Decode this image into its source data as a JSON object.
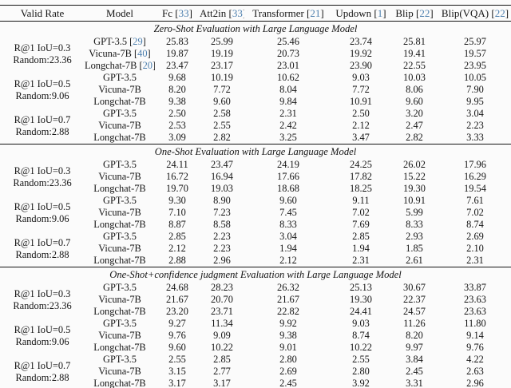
{
  "colors": {
    "citation": "#4d7fae",
    "rule": "#141414",
    "text": "#151515",
    "background": "#fbfbfb"
  },
  "columns": [
    {
      "label": "Valid Rate"
    },
    {
      "label": "Model"
    },
    {
      "label": "Fc",
      "cite": "33"
    },
    {
      "label": "Att2in",
      "cite": "33"
    },
    {
      "label": "Transformer",
      "cite": "21"
    },
    {
      "label": "Updown",
      "cite": "1"
    },
    {
      "label": "Blip",
      "cite": "22"
    },
    {
      "label": "Blip(VQA)",
      "cite": "22"
    }
  ],
  "sections": [
    {
      "title": "Zero-Shot Evaluation with Large Language Model",
      "groups": [
        {
          "valid_rate": [
            "R@1 IoU=0.3",
            "Random:23.36"
          ],
          "rows": [
            {
              "model": "GPT-3.5",
              "cite": "29",
              "values": [
                "25.83",
                "25.99",
                "25.46",
                "23.74",
                "25.81",
                "25.97"
              ]
            },
            {
              "model": "Vicuna-7B",
              "cite": "40",
              "values": [
                "19.87",
                "19.19",
                "20.73",
                "19.92",
                "19.41",
                "19.57"
              ]
            },
            {
              "model": "Longchat-7B",
              "cite": "20",
              "values": [
                "23.47",
                "23.17",
                "23.01",
                "23.90",
                "22.55",
                "23.95"
              ]
            }
          ]
        },
        {
          "valid_rate": [
            "R@1 IoU=0.5",
            "Random:9.06"
          ],
          "rows": [
            {
              "model": "GPT-3.5",
              "values": [
                "9.68",
                "10.19",
                "10.62",
                "9.03",
                "10.03",
                "10.05"
              ]
            },
            {
              "model": "Vicuna-7B",
              "values": [
                "8.20",
                "7.72",
                "8.04",
                "7.72",
                "8.06",
                "7.90"
              ]
            },
            {
              "model": "Longchat-7B",
              "values": [
                "9.38",
                "9.60",
                "9.84",
                "10.91",
                "9.60",
                "9.95"
              ]
            }
          ]
        },
        {
          "valid_rate": [
            "R@1 IoU=0.7",
            "Random:2.88"
          ],
          "rows": [
            {
              "model": "GPT-3.5",
              "values": [
                "2.50",
                "2.58",
                "2.31",
                "2.50",
                "3.20",
                "3.04"
              ]
            },
            {
              "model": "Vicuna-7B",
              "values": [
                "2.53",
                "2.55",
                "2.42",
                "2.12",
                "2.47",
                "2.23"
              ]
            },
            {
              "model": "Longchat-7B",
              "values": [
                "3.09",
                "2.82",
                "3.25",
                "3.47",
                "2.82",
                "3.33"
              ]
            }
          ]
        }
      ]
    },
    {
      "title": "One-Shot Evaluation with Large Language Model",
      "groups": [
        {
          "valid_rate": [
            "R@1 IoU=0.3",
            "Random:23.36"
          ],
          "rows": [
            {
              "model": "GPT-3.5",
              "values": [
                "24.11",
                "23.47",
                "24.19",
                "24.25",
                "26.02",
                "17.96"
              ]
            },
            {
              "model": "Vicuna-7B",
              "values": [
                "16.72",
                "16.94",
                "17.66",
                "17.82",
                "15.22",
                "16.29"
              ]
            },
            {
              "model": "Longchat-7B",
              "values": [
                "19.70",
                "19.03",
                "18.68",
                "18.25",
                "19.30",
                "19.54"
              ]
            }
          ]
        },
        {
          "valid_rate": [
            "R@1 IoU=0.5",
            "Random:9.06"
          ],
          "rows": [
            {
              "model": "GPT-3.5",
              "values": [
                "9.30",
                "8.90",
                "9.60",
                "9.11",
                "10.91",
                "7.61"
              ]
            },
            {
              "model": "Vicuna-7B",
              "values": [
                "7.10",
                "7.23",
                "7.45",
                "7.02",
                "5.99",
                "7.02"
              ]
            },
            {
              "model": "Longchat-7B",
              "values": [
                "8.87",
                "8.58",
                "8.33",
                "7.69",
                "8.33",
                "8.74"
              ]
            }
          ]
        },
        {
          "valid_rate": [
            "R@1 IoU=0.7",
            "Random:2.88"
          ],
          "rows": [
            {
              "model": "GPT-3.5",
              "values": [
                "2.85",
                "2.23",
                "3.04",
                "2.85",
                "2.93",
                "2.69"
              ]
            },
            {
              "model": "Vicuna-7B",
              "values": [
                "2.12",
                "2.23",
                "1.94",
                "1.94",
                "1.85",
                "2.10"
              ]
            },
            {
              "model": "Longchat-7B",
              "values": [
                "2.88",
                "2.96",
                "2.12",
                "2.31",
                "2.61",
                "2.31"
              ]
            }
          ]
        }
      ]
    },
    {
      "title": "One-Shot+confidence judgment Evaluation with Large Language Model",
      "groups": [
        {
          "valid_rate": [
            "R@1 IoU=0.3",
            "Random:23.36"
          ],
          "rows": [
            {
              "model": "GPT-3.5",
              "values": [
                "24.68",
                "28.23",
                "26.32",
                "25.13",
                "30.67",
                "33.87"
              ]
            },
            {
              "model": "Vicuna-7B",
              "values": [
                "21.67",
                "20.70",
                "21.67",
                "19.30",
                "22.37",
                "23.63"
              ]
            },
            {
              "model": "Longchat-7B",
              "values": [
                "23.20",
                "23.71",
                "22.82",
                "24.41",
                "24.57",
                "23.63"
              ]
            }
          ]
        },
        {
          "valid_rate": [
            "R@1 IoU=0.5",
            "Random:9.06"
          ],
          "rows": [
            {
              "model": "GPT-3.5",
              "values": [
                "9.27",
                "11.34",
                "9.92",
                "9.03",
                "11.26",
                "11.80"
              ]
            },
            {
              "model": "Vicuna-7B",
              "values": [
                "9.76",
                "9.09",
                "9.38",
                "8.74",
                "8.20",
                "9.14"
              ]
            },
            {
              "model": "Longchat-7B",
              "values": [
                "9.60",
                "10.22",
                "9.01",
                "10.22",
                "9.97",
                "9.76"
              ]
            }
          ]
        },
        {
          "valid_rate": [
            "R@1 IoU=0.7",
            "Random:2.88"
          ],
          "rows": [
            {
              "model": "GPT-3.5",
              "values": [
                "2.55",
                "2.85",
                "2.80",
                "2.55",
                "3.84",
                "4.22"
              ]
            },
            {
              "model": "Vicuna-7B",
              "values": [
                "3.15",
                "2.77",
                "2.69",
                "2.80",
                "2.45",
                "2.63"
              ]
            },
            {
              "model": "Longchat-7B",
              "values": [
                "3.17",
                "3.17",
                "2.45",
                "3.92",
                "3.31",
                "2.96"
              ]
            }
          ]
        }
      ]
    }
  ]
}
